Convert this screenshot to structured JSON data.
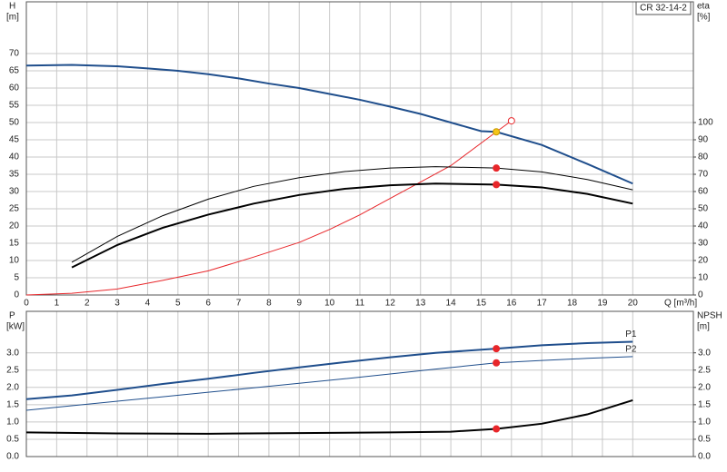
{
  "chart_data": [
    {
      "type": "line",
      "label": "CR 32-14-2",
      "y_label": "H",
      "y_unit": "[m]",
      "y2_label": "eta",
      "y2_unit": "[%]",
      "x_label": "Q [m³/h]",
      "xlim": [
        0,
        22
      ],
      "ylim": [
        0,
        85
      ],
      "y2lim": [
        0,
        170
      ],
      "grid": true,
      "xticks": [
        0,
        1,
        2,
        3,
        4,
        5,
        6,
        7,
        8,
        9,
        10,
        11,
        12,
        13,
        14,
        15,
        16,
        17,
        18,
        19,
        20
      ],
      "yticks": [
        0,
        5,
        10,
        15,
        20,
        25,
        30,
        35,
        40,
        45,
        50,
        55,
        60,
        65,
        70
      ],
      "y2ticks": [
        0,
        10,
        20,
        30,
        40,
        50,
        60,
        70,
        80,
        90,
        100
      ],
      "series": [
        {
          "color": "#1f4e8c",
          "x": [
            0,
            1.5,
            3,
            4,
            5,
            6,
            7,
            8,
            9,
            10,
            11,
            12,
            13,
            14,
            15,
            15.5,
            17,
            18.5,
            20
          ],
          "values": [
            66.5,
            66.7,
            66.3,
            65.7,
            65,
            64,
            62.8,
            61.3,
            60,
            58.3,
            56.6,
            54.6,
            52.5,
            50,
            47.5,
            47.3,
            43.5,
            38,
            32.3
          ]
        },
        {
          "color": "#e8262a",
          "axis": "y2",
          "x": [
            0,
            1.5,
            3,
            4.5,
            6,
            7.5,
            9,
            10,
            11,
            12,
            13,
            14,
            15.5,
            16
          ],
          "values": [
            0,
            1,
            3.5,
            8.5,
            14,
            22,
            30.5,
            38,
            46.5,
            56,
            65.5,
            75,
            94.6,
            101
          ]
        },
        {
          "color": "#000000",
          "axis": "y2",
          "x": [
            1.5,
            3,
            4.5,
            6,
            7.5,
            9,
            10.5,
            12,
            13.5,
            15.5,
            17,
            18.5,
            20
          ],
          "values": [
            19,
            34,
            46,
            55.6,
            63,
            68,
            71.6,
            73.6,
            74.4,
            73.6,
            71.4,
            67,
            61
          ]
        },
        {
          "color": "#000000",
          "axis": "y2",
          "x": [
            1.5,
            3,
            4.5,
            6,
            7.5,
            9,
            10.5,
            12,
            13.5,
            15.5,
            17,
            18.5,
            20
          ],
          "values": [
            16,
            29,
            39,
            46.6,
            53,
            58,
            61.6,
            63.6,
            64.6,
            64,
            62.4,
            58.6,
            53
          ]
        }
      ],
      "markers": [
        {
          "x": 15.5,
          "y": 47.3,
          "color": "#f5c518"
        },
        {
          "x": 15.5,
          "y": 73.6,
          "axis": "y2",
          "color": "#e8262a"
        },
        {
          "x": 15.5,
          "y": 64,
          "axis": "y2",
          "color": "#e8262a"
        },
        {
          "x": 16,
          "y": 101,
          "axis": "y2",
          "color": "#e8262a",
          "open": true
        }
      ]
    },
    {
      "type": "line",
      "y_label": "P",
      "y_unit": "[kW]",
      "y2_label": "NPSH",
      "y2_unit": "[m]",
      "xlim": [
        0,
        22
      ],
      "ylim": [
        0,
        4.2
      ],
      "y2lim": [
        0,
        4.2
      ],
      "grid": true,
      "yticks": [
        {
          "value": 0,
          "label": "0.0"
        },
        0.5,
        {
          "value": 1,
          "label": "1.0"
        },
        1.5,
        {
          "value": 2,
          "label": "2.0"
        },
        2.5,
        {
          "value": 3,
          "label": "3.0"
        }
      ],
      "y2ticks": [
        {
          "value": 0,
          "label": "0.0"
        },
        0.5,
        {
          "value": 1,
          "label": "1.0"
        },
        1.5,
        {
          "value": 2,
          "label": "2.0"
        },
        2.5,
        {
          "value": 3,
          "label": "3.0"
        }
      ],
      "series": [
        {
          "name": "P1",
          "color": "#1f4e8c",
          "x": [
            0,
            1.5,
            3,
            4.5,
            6,
            7.5,
            9,
            10.5,
            12,
            13.5,
            15.5,
            17,
            18.5,
            20
          ],
          "values": [
            1.66,
            1.77,
            1.93,
            2.1,
            2.25,
            2.42,
            2.58,
            2.73,
            2.87,
            3.0,
            3.12,
            3.22,
            3.28,
            3.32
          ]
        },
        {
          "name": "P2",
          "color": "#1f4e8c",
          "x": [
            0,
            1.5,
            3,
            4.5,
            6,
            7.5,
            9,
            10.5,
            12,
            13.5,
            15.5,
            17,
            18.5,
            20
          ],
          "values": [
            1.34,
            1.47,
            1.6,
            1.73,
            1.86,
            1.99,
            2.12,
            2.25,
            2.39,
            2.53,
            2.71,
            2.78,
            2.84,
            2.89
          ]
        },
        {
          "color": "#000000",
          "axis": "y2",
          "x": [
            0,
            3,
            6,
            9,
            12,
            14,
            15.5,
            17,
            18.5,
            20
          ],
          "values": [
            0.7,
            0.67,
            0.66,
            0.68,
            0.7,
            0.72,
            0.8,
            0.95,
            1.22,
            1.63
          ]
        }
      ],
      "markers": [
        {
          "x": 15.5,
          "y": 3.12,
          "color": "#e8262a"
        },
        {
          "x": 15.5,
          "y": 2.71,
          "color": "#e8262a"
        },
        {
          "x": 15.5,
          "y": 0.8,
          "axis": "y2",
          "color": "#e8262a"
        }
      ]
    }
  ]
}
